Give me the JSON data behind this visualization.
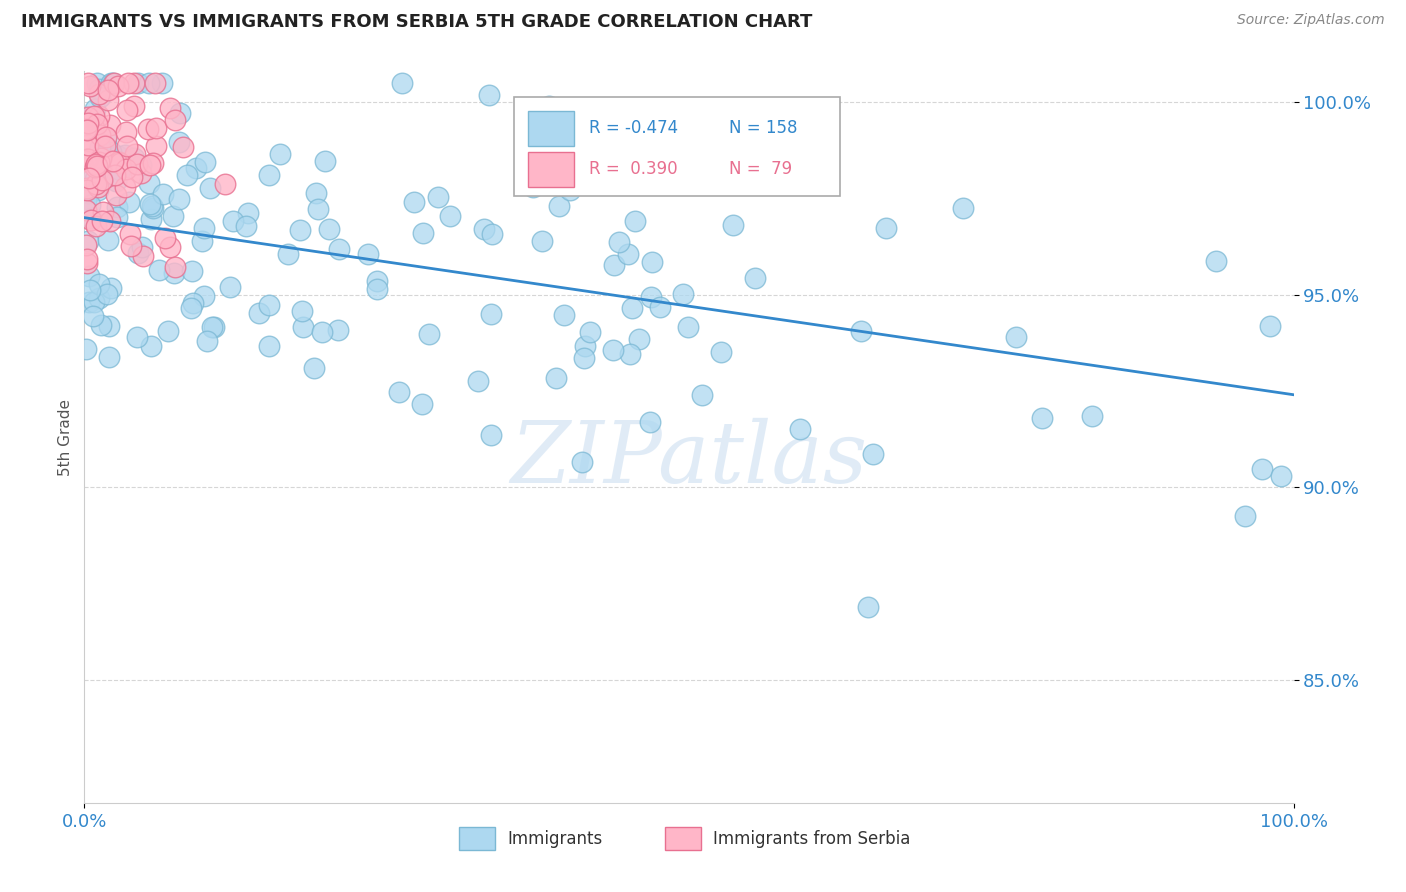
{
  "title": "IMMIGRANTS VS IMMIGRANTS FROM SERBIA 5TH GRADE CORRELATION CHART",
  "source": "Source: ZipAtlas.com",
  "ylabel": "5th Grade",
  "xlim": [
    0.0,
    1.0
  ],
  "ylim": [
    0.818,
    1.008
  ],
  "yticks": [
    0.85,
    0.9,
    0.95,
    1.0
  ],
  "ytick_labels": [
    "85.0%",
    "90.0%",
    "95.0%",
    "100.0%"
  ],
  "xticks": [
    0.0,
    1.0
  ],
  "xtick_labels": [
    "0.0%",
    "100.0%"
  ],
  "legend_r1": "R = -0.474",
  "legend_n1": "N = 158",
  "legend_r2": "R =  0.390",
  "legend_n2": "N =  79",
  "blue_fill": "#ADD8F0",
  "blue_edge": "#7BB8D4",
  "pink_fill": "#FFB6C8",
  "pink_edge": "#E87090",
  "trend_blue": "#3388CC",
  "watermark": "ZIPatlas",
  "background": "#FFFFFF",
  "seed": 42,
  "n_blue": 158,
  "n_pink": 79,
  "blue_trend_x0": 0.0,
  "blue_trend_y0": 0.97,
  "blue_trend_x1": 1.0,
  "blue_trend_y1": 0.924,
  "legend_label1": "Immigrants",
  "legend_label2": "Immigrants from Serbia"
}
